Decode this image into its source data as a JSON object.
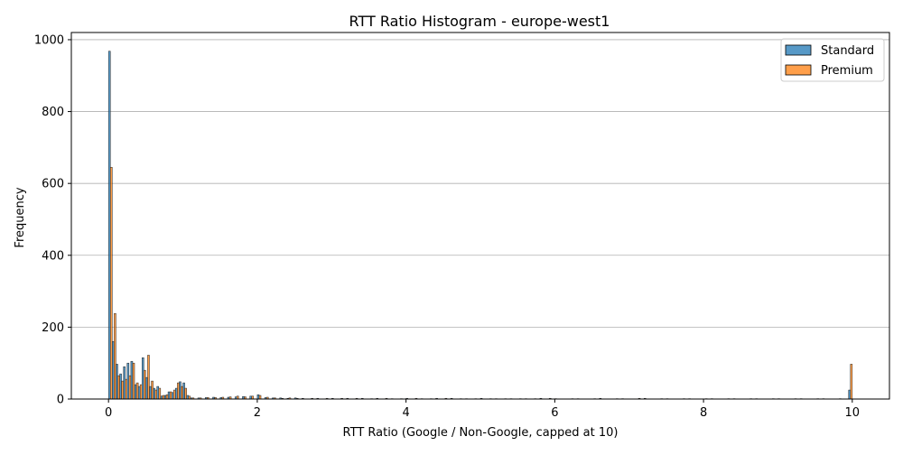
{
  "chart_data": {
    "type": "bar",
    "title": "RTT Ratio Histogram - europe-west1",
    "xlabel": "RTT Ratio (Google / Non-Google, capped at 10)",
    "ylabel": "Frequency",
    "xlim": [
      -0.5,
      10.5
    ],
    "ylim": [
      0,
      1020
    ],
    "xticks": [
      0,
      2,
      4,
      6,
      8,
      10
    ],
    "yticks": [
      0,
      200,
      400,
      600,
      800,
      1000
    ],
    "grid": "horizontal",
    "legend_position": "top-right",
    "bin_width": 0.05,
    "series": [
      {
        "name": "Standard",
        "color": "#1f77b4",
        "bins": [
          [
            0.0,
            968
          ],
          [
            0.05,
            160
          ],
          [
            0.1,
            97
          ],
          [
            0.15,
            70
          ],
          [
            0.2,
            90
          ],
          [
            0.25,
            100
          ],
          [
            0.3,
            105
          ],
          [
            0.35,
            40
          ],
          [
            0.4,
            35
          ],
          [
            0.45,
            115
          ],
          [
            0.5,
            60
          ],
          [
            0.55,
            35
          ],
          [
            0.6,
            30
          ],
          [
            0.65,
            35
          ],
          [
            0.7,
            8
          ],
          [
            0.75,
            10
          ],
          [
            0.8,
            20
          ],
          [
            0.85,
            18
          ],
          [
            0.9,
            30
          ],
          [
            0.95,
            48
          ],
          [
            1.0,
            45
          ],
          [
            1.05,
            10
          ],
          [
            1.1,
            3
          ],
          [
            1.2,
            3
          ],
          [
            1.3,
            4
          ],
          [
            1.4,
            5
          ],
          [
            1.5,
            4
          ],
          [
            1.6,
            5
          ],
          [
            1.7,
            6
          ],
          [
            1.8,
            7
          ],
          [
            1.9,
            8
          ],
          [
            2.0,
            12
          ],
          [
            2.1,
            4
          ],
          [
            2.2,
            3
          ],
          [
            2.3,
            3
          ],
          [
            2.4,
            2
          ],
          [
            2.5,
            3
          ],
          [
            2.6,
            2
          ],
          [
            2.8,
            2
          ],
          [
            3.0,
            2
          ],
          [
            3.2,
            2
          ],
          [
            3.4,
            2
          ],
          [
            3.6,
            2
          ],
          [
            3.8,
            1
          ],
          [
            4.0,
            2
          ],
          [
            4.2,
            1
          ],
          [
            4.4,
            2
          ],
          [
            4.6,
            2
          ],
          [
            4.8,
            1
          ],
          [
            5.0,
            2
          ],
          [
            5.2,
            1
          ],
          [
            5.4,
            1
          ],
          [
            5.6,
            1
          ],
          [
            5.8,
            2
          ],
          [
            6.0,
            1
          ],
          [
            6.3,
            1
          ],
          [
            6.6,
            2
          ],
          [
            6.9,
            1
          ],
          [
            7.2,
            2
          ],
          [
            7.5,
            1
          ],
          [
            7.8,
            1
          ],
          [
            8.1,
            1
          ],
          [
            8.4,
            1
          ],
          [
            8.7,
            1
          ],
          [
            9.0,
            1
          ],
          [
            9.3,
            1
          ],
          [
            9.6,
            1
          ],
          [
            9.95,
            25
          ]
        ]
      },
      {
        "name": "Premium",
        "color": "#ff7f0e",
        "bins": [
          [
            0.0,
            645
          ],
          [
            0.05,
            238
          ],
          [
            0.1,
            65
          ],
          [
            0.15,
            50
          ],
          [
            0.2,
            55
          ],
          [
            0.25,
            65
          ],
          [
            0.3,
            100
          ],
          [
            0.35,
            45
          ],
          [
            0.4,
            40
          ],
          [
            0.45,
            80
          ],
          [
            0.5,
            122
          ],
          [
            0.55,
            50
          ],
          [
            0.6,
            25
          ],
          [
            0.65,
            30
          ],
          [
            0.7,
            10
          ],
          [
            0.75,
            12
          ],
          [
            0.8,
            20
          ],
          [
            0.85,
            25
          ],
          [
            0.9,
            45
          ],
          [
            0.95,
            35
          ],
          [
            1.0,
            30
          ],
          [
            1.05,
            8
          ],
          [
            1.1,
            3
          ],
          [
            1.2,
            3
          ],
          [
            1.3,
            4
          ],
          [
            1.4,
            4
          ],
          [
            1.5,
            5
          ],
          [
            1.6,
            6
          ],
          [
            1.7,
            8
          ],
          [
            1.8,
            6
          ],
          [
            1.9,
            8
          ],
          [
            2.0,
            10
          ],
          [
            2.1,
            5
          ],
          [
            2.2,
            3
          ],
          [
            2.3,
            2
          ],
          [
            2.4,
            3
          ],
          [
            2.5,
            2
          ],
          [
            2.7,
            2
          ],
          [
            2.9,
            2
          ],
          [
            3.1,
            2
          ],
          [
            3.3,
            2
          ],
          [
            3.5,
            1
          ],
          [
            3.7,
            2
          ],
          [
            3.9,
            1
          ],
          [
            4.1,
            2
          ],
          [
            4.3,
            1
          ],
          [
            4.5,
            2
          ],
          [
            4.7,
            1
          ],
          [
            4.9,
            1
          ],
          [
            5.1,
            1
          ],
          [
            5.3,
            1
          ],
          [
            5.5,
            1
          ],
          [
            5.7,
            1
          ],
          [
            5.9,
            2
          ],
          [
            6.2,
            1
          ],
          [
            6.5,
            1
          ],
          [
            6.8,
            1
          ],
          [
            7.1,
            2
          ],
          [
            7.4,
            1
          ],
          [
            7.7,
            1
          ],
          [
            8.0,
            1
          ],
          [
            8.3,
            1
          ],
          [
            8.6,
            1
          ],
          [
            8.9,
            1
          ],
          [
            9.2,
            1
          ],
          [
            9.5,
            1
          ],
          [
            9.8,
            1
          ],
          [
            9.95,
            97
          ]
        ]
      }
    ]
  }
}
